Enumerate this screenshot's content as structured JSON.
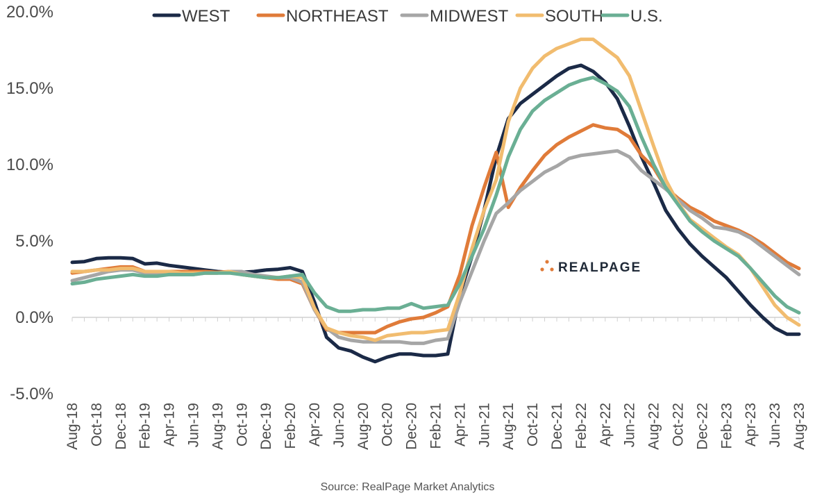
{
  "source": "Source: RealPage Market Analytics",
  "logo": {
    "text": "REALPAGE",
    "icon": "dots-logo-icon",
    "color": "#e07b39"
  },
  "chart_data": {
    "type": "line",
    "title": "",
    "xlabel": "",
    "ylabel": "",
    "ylim": [
      -5.0,
      20.0
    ],
    "yticks": [
      "20.0%",
      "15.0%",
      "10.0%",
      "5.0%",
      "0.0%",
      "-5.0%"
    ],
    "ytick_values": [
      20,
      15,
      10,
      5,
      0,
      -5
    ],
    "xticks": [
      "Aug-18",
      "Oct-18",
      "Dec-18",
      "Feb-19",
      "Apr-19",
      "Jun-19",
      "Aug-19",
      "Oct-19",
      "Dec-19",
      "Feb-20",
      "Apr-20",
      "Jun-20",
      "Aug-20",
      "Oct-20",
      "Dec-20",
      "Feb-21",
      "Apr-21",
      "Jun-21",
      "Aug-21",
      "Oct-21",
      "Dec-21",
      "Feb-22",
      "Apr-22",
      "Jun-22",
      "Aug-22",
      "Oct-22",
      "Dec-22",
      "Feb-23",
      "Apr-23",
      "Jun-23",
      "Aug-23"
    ],
    "x": [
      "Aug-18",
      "Sep-18",
      "Oct-18",
      "Nov-18",
      "Dec-18",
      "Jan-19",
      "Feb-19",
      "Mar-19",
      "Apr-19",
      "May-19",
      "Jun-19",
      "Jul-19",
      "Aug-19",
      "Sep-19",
      "Oct-19",
      "Nov-19",
      "Dec-19",
      "Jan-20",
      "Feb-20",
      "Mar-20",
      "Apr-20",
      "May-20",
      "Jun-20",
      "Jul-20",
      "Aug-20",
      "Sep-20",
      "Oct-20",
      "Nov-20",
      "Dec-20",
      "Jan-21",
      "Feb-21",
      "Mar-21",
      "Apr-21",
      "May-21",
      "Jun-21",
      "Jul-21",
      "Aug-21",
      "Sep-21",
      "Oct-21",
      "Nov-21",
      "Dec-21",
      "Jan-22",
      "Feb-22",
      "Mar-22",
      "Apr-22",
      "May-22",
      "Jun-22",
      "Jul-22",
      "Aug-22",
      "Sep-22",
      "Oct-22",
      "Nov-22",
      "Dec-22",
      "Jan-23",
      "Feb-23",
      "Mar-23",
      "Apr-23",
      "May-23",
      "Jun-23",
      "Jul-23",
      "Aug-23"
    ],
    "grid": false,
    "legend_position": "top",
    "series": [
      {
        "name": "WEST",
        "color": "#1b2a47",
        "values": [
          3.6,
          3.65,
          3.85,
          3.9,
          3.9,
          3.85,
          3.5,
          3.55,
          3.4,
          3.3,
          3.2,
          3.1,
          3.0,
          2.95,
          2.95,
          3.0,
          3.1,
          3.15,
          3.25,
          3.0,
          1.0,
          -1.3,
          -2.0,
          -2.2,
          -2.6,
          -2.9,
          -2.6,
          -2.4,
          -2.4,
          -2.5,
          -2.5,
          -2.4,
          1.5,
          4.0,
          7.0,
          10.5,
          13.0,
          14.0,
          14.6,
          15.2,
          15.8,
          16.3,
          16.5,
          16.1,
          15.4,
          14.3,
          12.5,
          10.5,
          8.8,
          7.0,
          5.8,
          4.8,
          4.0,
          3.3,
          2.6,
          1.7,
          0.8,
          0.0,
          -0.7,
          -1.1,
          -1.1
        ]
      },
      {
        "name": "NORTHEAST",
        "color": "#e07b39",
        "values": [
          2.9,
          3.0,
          3.1,
          3.2,
          3.3,
          3.3,
          3.0,
          3.0,
          3.0,
          3.0,
          3.0,
          3.0,
          2.95,
          3.0,
          2.8,
          2.7,
          2.6,
          2.5,
          2.5,
          2.2,
          0.5,
          -0.8,
          -1.0,
          -1.0,
          -1.0,
          -1.0,
          -0.6,
          -0.3,
          -0.1,
          0.0,
          0.3,
          0.7,
          2.8,
          6.0,
          8.5,
          10.8,
          7.2,
          8.5,
          9.6,
          10.6,
          11.3,
          11.8,
          12.2,
          12.6,
          12.4,
          12.3,
          11.8,
          10.6,
          9.8,
          8.5,
          7.8,
          7.2,
          6.8,
          6.3,
          6.0,
          5.7,
          5.3,
          4.8,
          4.2,
          3.6,
          3.2
        ]
      },
      {
        "name": "MIDWEST",
        "color": "#a6a6a6",
        "values": [
          2.4,
          2.6,
          2.8,
          3.0,
          3.1,
          3.1,
          2.9,
          2.8,
          2.8,
          2.8,
          2.8,
          2.9,
          2.9,
          3.0,
          3.0,
          2.8,
          2.7,
          2.6,
          2.6,
          2.3,
          0.5,
          -0.7,
          -1.3,
          -1.5,
          -1.6,
          -1.6,
          -1.6,
          -1.6,
          -1.7,
          -1.7,
          -1.5,
          -1.4,
          1.0,
          3.0,
          5.0,
          6.8,
          7.5,
          8.3,
          8.9,
          9.5,
          9.9,
          10.4,
          10.6,
          10.7,
          10.8,
          10.9,
          10.5,
          9.6,
          9.0,
          8.4,
          7.7,
          7.0,
          6.5,
          5.9,
          5.8,
          5.6,
          5.2,
          4.6,
          4.0,
          3.4,
          2.8
        ]
      },
      {
        "name": "SOUTH",
        "color": "#f1bc6f",
        "values": [
          3.0,
          3.0,
          3.1,
          3.1,
          3.2,
          3.2,
          3.0,
          3.0,
          3.0,
          2.9,
          2.9,
          2.9,
          2.9,
          3.0,
          2.8,
          2.7,
          2.6,
          2.6,
          2.7,
          2.6,
          0.6,
          -0.7,
          -1.0,
          -1.2,
          -1.3,
          -1.5,
          -1.2,
          -1.1,
          -1.0,
          -1.0,
          -0.9,
          -0.8,
          1.6,
          4.5,
          7.0,
          9.0,
          12.8,
          15.0,
          16.3,
          17.1,
          17.6,
          17.9,
          18.2,
          18.2,
          17.6,
          17.0,
          15.8,
          13.5,
          11.2,
          9.0,
          7.5,
          6.4,
          5.8,
          5.2,
          4.6,
          4.1,
          3.2,
          2.0,
          0.8,
          0.0,
          -0.5
        ]
      },
      {
        "name": "U.S.",
        "color": "#6aaf94",
        "values": [
          2.2,
          2.3,
          2.5,
          2.6,
          2.7,
          2.8,
          2.7,
          2.7,
          2.8,
          2.8,
          2.8,
          2.9,
          2.9,
          2.9,
          2.8,
          2.7,
          2.6,
          2.6,
          2.7,
          2.8,
          1.6,
          0.7,
          0.4,
          0.4,
          0.5,
          0.5,
          0.6,
          0.6,
          0.9,
          0.6,
          0.7,
          0.8,
          2.2,
          4.0,
          5.8,
          8.0,
          10.5,
          12.3,
          13.5,
          14.2,
          14.7,
          15.2,
          15.5,
          15.7,
          15.3,
          14.8,
          13.8,
          11.8,
          10.0,
          8.5,
          7.4,
          6.3,
          5.6,
          5.0,
          4.5,
          4.0,
          3.2,
          2.3,
          1.4,
          0.7,
          0.3
        ]
      }
    ]
  }
}
